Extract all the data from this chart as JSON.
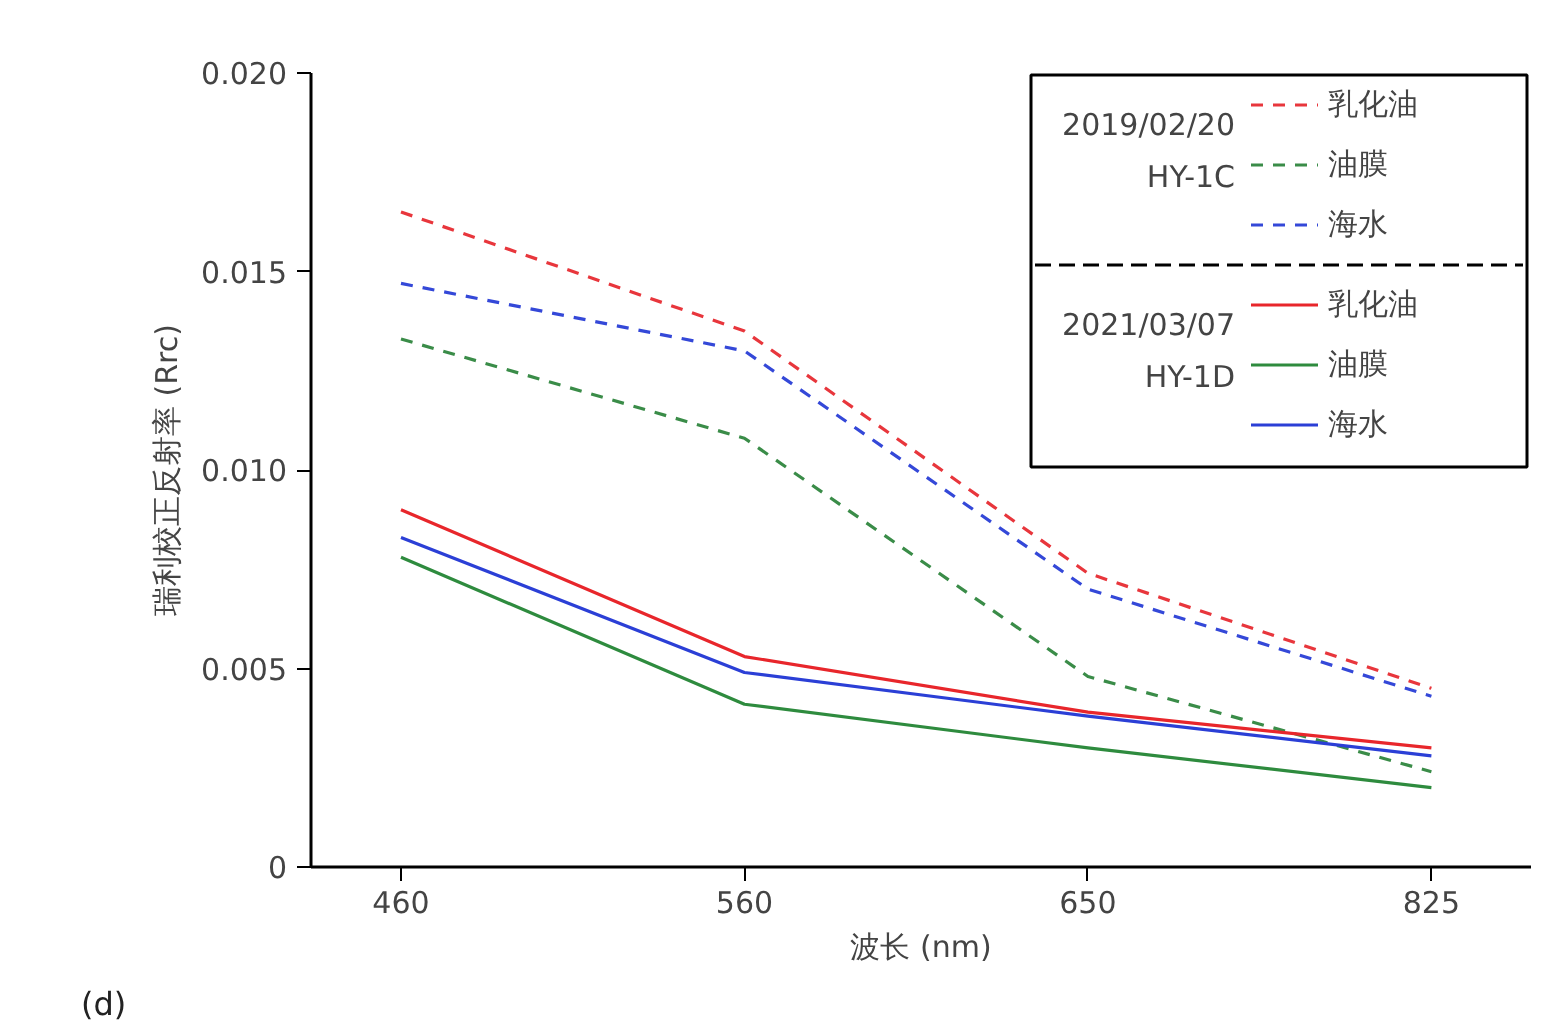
{
  "chart_data": {
    "type": "line",
    "xlabel": "波长 (nm)",
    "ylabel": "瑞利校正反射率 (Rrc)",
    "categories": [
      "460",
      "560",
      "650",
      "825"
    ],
    "ylim": [
      0,
      0.02
    ],
    "yticks": [
      0,
      0.005,
      {
        "value": 0.01,
        "label": "0.010"
      },
      0.015,
      {
        "value": 0.02,
        "label": "0.020"
      }
    ],
    "grid": false,
    "legend": "top right",
    "marker": "none",
    "series": [
      {
        "name": "乳化油",
        "color": "#e8363c",
        "line_style": "dashed",
        "values": [
          0.0165,
          0.0135,
          0.0074,
          0.0045
        ]
      },
      {
        "name": "油膜",
        "color": "#3a8c48",
        "line_style": "dashed",
        "values": [
          0.0133,
          0.0108,
          0.0048,
          0.0024
        ]
      },
      {
        "name": "海水",
        "color": "#3448d8",
        "line_style": "dashed",
        "values": [
          0.0147,
          0.013,
          0.007,
          0.0043
        ]
      },
      {
        "name": "乳化油",
        "color": "#e8262b",
        "line_style": "solid",
        "values": [
          0.009,
          0.0053,
          0.0039,
          0.003
        ]
      },
      {
        "name": "油膜",
        "color": "#2e8b3e",
        "line_style": "solid",
        "values": [
          0.0078,
          0.0041,
          0.003,
          0.002
        ]
      },
      {
        "name": "海水",
        "color": "#2b3fd6",
        "line_style": "solid",
        "values": [
          0.0083,
          0.0049,
          0.0038,
          0.0028
        ]
      }
    ],
    "annotations": [
      "2019/02/20",
      "HY-1C",
      "2021/03/07",
      "HY-1D",
      "(d)"
    ]
  }
}
